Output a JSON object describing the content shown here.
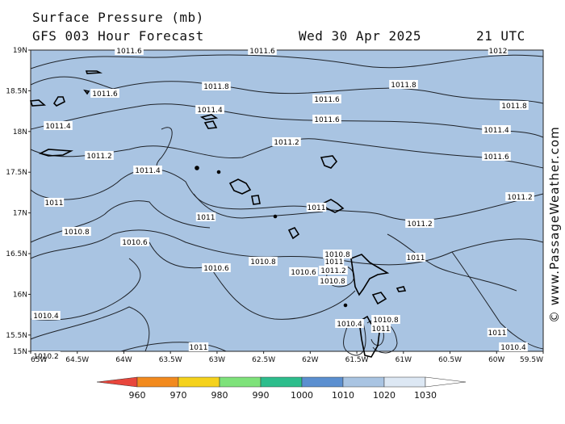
{
  "header": {
    "title": "Surface Pressure (mb)",
    "subtitle": "GFS 003 Hour Forecast",
    "valid_date": "Wed 30 Apr 2025",
    "valid_time": "21 UTC"
  },
  "credit": "© www.PassageWeather.com",
  "map": {
    "background_color": "#a9c4e2",
    "lat_labels": [
      "19N",
      "18.5N",
      "18N",
      "17.5N",
      "17N",
      "16.5N",
      "16N",
      "15.5N",
      "15N"
    ],
    "lon_labels": [
      "65W",
      "64.5W",
      "64W",
      "63.5W",
      "63W",
      "62.5W",
      "62W",
      "61.5W",
      "61W",
      "60.5W",
      "60W",
      "59.5W"
    ],
    "contour_labels": [
      "1011.6",
      "1011.6",
      "1012",
      "1011.6",
      "1011.8",
      "1011.8",
      "1011.8",
      "1011.6",
      "1011.4",
      "1011.6",
      "1011.4",
      "1011.4",
      "1011.6",
      "1011.2",
      "1011.2",
      "1011.4",
      "1011",
      "1011",
      "1011.2",
      "1011",
      "1011",
      "1011.2",
      "1010.8",
      "1010.6",
      "1010.6",
      "1010.8",
      "1010.8",
      "1011",
      "1011.2",
      "1011",
      "1010.6",
      "1010.4",
      "1010.4",
      "1010.8",
      "1011",
      "1011",
      "1010.2",
      "1010.4",
      "1010.8"
    ]
  },
  "colorbar": {
    "ticks": [
      "960",
      "970",
      "980",
      "990",
      "1000",
      "1010",
      "1020",
      "1030"
    ],
    "colors": [
      "#e8463c",
      "#f28a1e",
      "#f5d21c",
      "#7ee27a",
      "#2dbd8c",
      "#5b8fd0",
      "#a9c4e2",
      "#dde8f4",
      "#ffffff"
    ]
  }
}
